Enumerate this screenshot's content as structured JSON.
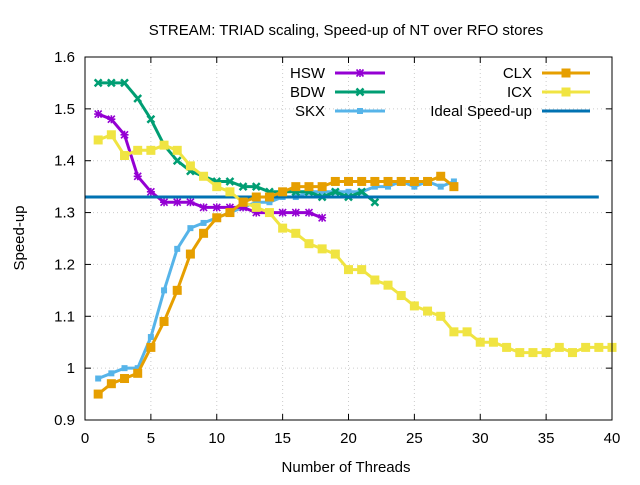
{
  "chart_data": {
    "type": "line",
    "title": "STREAM: TRIAD scaling, Speed-up of NT over RFO stores",
    "xlabel": "Number of Threads",
    "ylabel": "Speed-up",
    "xlim": [
      0,
      40
    ],
    "ylim": [
      0.9,
      1.6
    ],
    "xticks": [
      0,
      5,
      10,
      15,
      20,
      25,
      30,
      35,
      40
    ],
    "yticks": [
      0.9,
      1,
      1.1,
      1.2,
      1.3,
      1.4,
      1.5,
      1.6
    ],
    "grid": true,
    "legend_placement": "top",
    "series": [
      {
        "name": "HSW",
        "color": "#9400d3",
        "marker": "star",
        "x": [
          1,
          2,
          3,
          4,
          5,
          6,
          7,
          8,
          9,
          10,
          11,
          12,
          13,
          14,
          15,
          16,
          17,
          18
        ],
        "y": [
          1.49,
          1.48,
          1.45,
          1.37,
          1.34,
          1.32,
          1.32,
          1.32,
          1.31,
          1.31,
          1.31,
          1.31,
          1.3,
          1.3,
          1.3,
          1.3,
          1.3,
          1.29
        ]
      },
      {
        "name": "BDW",
        "color": "#009e73",
        "marker": "x",
        "x": [
          1,
          2,
          3,
          4,
          5,
          6,
          7,
          8,
          9,
          10,
          11,
          12,
          13,
          14,
          15,
          16,
          17,
          18,
          19,
          20,
          21,
          22
        ],
        "y": [
          1.55,
          1.55,
          1.55,
          1.52,
          1.48,
          1.43,
          1.4,
          1.38,
          1.37,
          1.36,
          1.36,
          1.35,
          1.35,
          1.34,
          1.34,
          1.34,
          1.34,
          1.33,
          1.34,
          1.33,
          1.34,
          1.32
        ]
      },
      {
        "name": "SKX",
        "color": "#56b4e9",
        "marker": "square-small",
        "x": [
          1,
          2,
          3,
          4,
          5,
          6,
          7,
          8,
          9,
          10,
          11,
          12,
          13,
          14,
          15,
          16,
          17,
          18,
          19,
          20,
          21,
          22,
          23,
          24,
          25,
          26,
          27,
          28
        ],
        "y": [
          0.98,
          0.99,
          1.0,
          1.0,
          1.06,
          1.15,
          1.23,
          1.27,
          1.28,
          1.29,
          1.3,
          1.31,
          1.32,
          1.32,
          1.33,
          1.33,
          1.34,
          1.34,
          1.34,
          1.34,
          1.34,
          1.35,
          1.35,
          1.36,
          1.35,
          1.36,
          1.35,
          1.36
        ]
      },
      {
        "name": "CLX",
        "color": "#e69f00",
        "marker": "square",
        "x": [
          1,
          2,
          3,
          4,
          5,
          6,
          7,
          8,
          9,
          10,
          11,
          12,
          13,
          14,
          15,
          16,
          17,
          18,
          19,
          20,
          21,
          22,
          23,
          24,
          25,
          26,
          27,
          28
        ],
        "y": [
          0.95,
          0.97,
          0.98,
          0.99,
          1.04,
          1.09,
          1.15,
          1.22,
          1.26,
          1.29,
          1.3,
          1.32,
          1.33,
          1.33,
          1.34,
          1.35,
          1.35,
          1.35,
          1.36,
          1.36,
          1.36,
          1.36,
          1.36,
          1.36,
          1.36,
          1.36,
          1.37,
          1.35
        ]
      },
      {
        "name": "ICX",
        "color": "#f0e442",
        "marker": "square",
        "x": [
          1,
          2,
          3,
          4,
          5,
          6,
          7,
          8,
          9,
          10,
          11,
          12,
          13,
          14,
          15,
          16,
          17,
          18,
          19,
          20,
          21,
          22,
          23,
          24,
          25,
          26,
          27,
          28,
          29,
          30,
          31,
          32,
          33,
          34,
          35,
          36,
          37,
          38,
          39,
          40
        ],
        "y": [
          1.44,
          1.45,
          1.41,
          1.42,
          1.42,
          1.43,
          1.42,
          1.39,
          1.37,
          1.35,
          1.34,
          1.32,
          1.31,
          1.3,
          1.27,
          1.26,
          1.24,
          1.23,
          1.22,
          1.19,
          1.19,
          1.17,
          1.16,
          1.14,
          1.12,
          1.11,
          1.1,
          1.07,
          1.07,
          1.05,
          1.05,
          1.04,
          1.03,
          1.03,
          1.03,
          1.04,
          1.03,
          1.04,
          1.04,
          1.04
        ]
      },
      {
        "name": "Ideal Speed-up",
        "color": "#0072b2",
        "marker": "none",
        "x": [
          0,
          39
        ],
        "y": [
          1.33,
          1.33
        ]
      }
    ]
  }
}
